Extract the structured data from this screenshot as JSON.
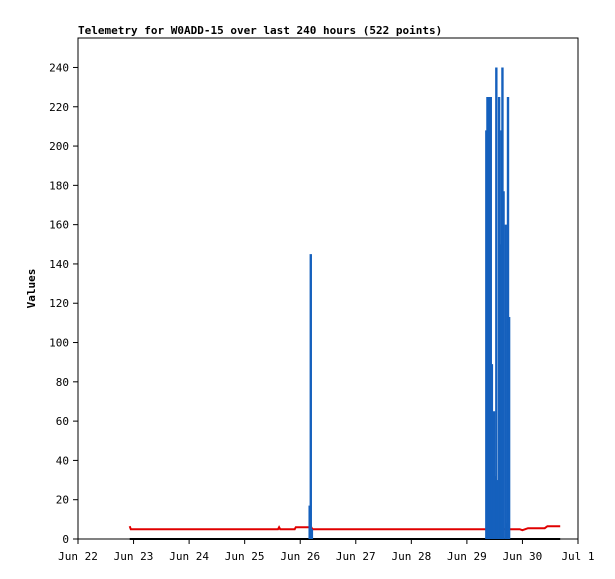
{
  "chart_data": {
    "type": "line",
    "title": "Telemetry for W0ADD-15 over last 240 hours (522 points)",
    "ylabel": "Values",
    "xlabel": "",
    "ylim": [
      0,
      255
    ],
    "yticks": [
      0,
      20,
      40,
      60,
      80,
      100,
      120,
      140,
      160,
      180,
      200,
      220,
      240
    ],
    "xlim": [
      0,
      9
    ],
    "xticks": [
      {
        "x": 0,
        "label": "Jun 22"
      },
      {
        "x": 1,
        "label": "Jun 23"
      },
      {
        "x": 2,
        "label": "Jun 24"
      },
      {
        "x": 3,
        "label": "Jun 25"
      },
      {
        "x": 4,
        "label": "Jun 26"
      },
      {
        "x": 5,
        "label": "Jun 27"
      },
      {
        "x": 6,
        "label": "Jun 28"
      },
      {
        "x": 7,
        "label": "Jun 29"
      },
      {
        "x": 8,
        "label": "Jun 30"
      },
      {
        "x": 9,
        "label": "Jul 1"
      }
    ],
    "series": [
      {
        "color": "#000000",
        "kind": "line",
        "points": [
          [
            0.93,
            0
          ],
          [
            8.68,
            0
          ]
        ]
      },
      {
        "color": "#e00000",
        "kind": "line",
        "points": [
          [
            0.93,
            6.5
          ],
          [
            0.95,
            5
          ],
          [
            3.6,
            5
          ],
          [
            3.62,
            6
          ],
          [
            3.64,
            5
          ],
          [
            3.9,
            5
          ],
          [
            3.92,
            6
          ],
          [
            4.2,
            6
          ],
          [
            4.22,
            5
          ],
          [
            7.95,
            5
          ],
          [
            8.0,
            4.5
          ],
          [
            8.1,
            5.5
          ],
          [
            8.4,
            5.5
          ],
          [
            8.45,
            6.5
          ],
          [
            8.68,
            6.5
          ]
        ]
      },
      {
        "color": "#1560bd",
        "kind": "spikes",
        "points": [
          [
            4.17,
            17
          ],
          [
            4.19,
            145
          ],
          [
            4.21,
            5
          ],
          [
            7.35,
            208
          ],
          [
            7.37,
            225
          ],
          [
            7.39,
            225
          ],
          [
            7.41,
            225
          ],
          [
            7.43,
            225
          ],
          [
            7.45,
            89
          ],
          [
            7.47,
            15
          ],
          [
            7.49,
            65
          ],
          [
            7.51,
            32
          ],
          [
            7.53,
            240
          ],
          [
            7.55,
            30
          ],
          [
            7.58,
            225
          ],
          [
            7.6,
            150
          ],
          [
            7.62,
            208
          ],
          [
            7.64,
            240
          ],
          [
            7.66,
            177
          ],
          [
            7.7,
            160
          ],
          [
            7.72,
            8
          ],
          [
            7.74,
            225
          ],
          [
            7.76,
            113
          ]
        ]
      }
    ],
    "grid": false,
    "legend": "none"
  }
}
